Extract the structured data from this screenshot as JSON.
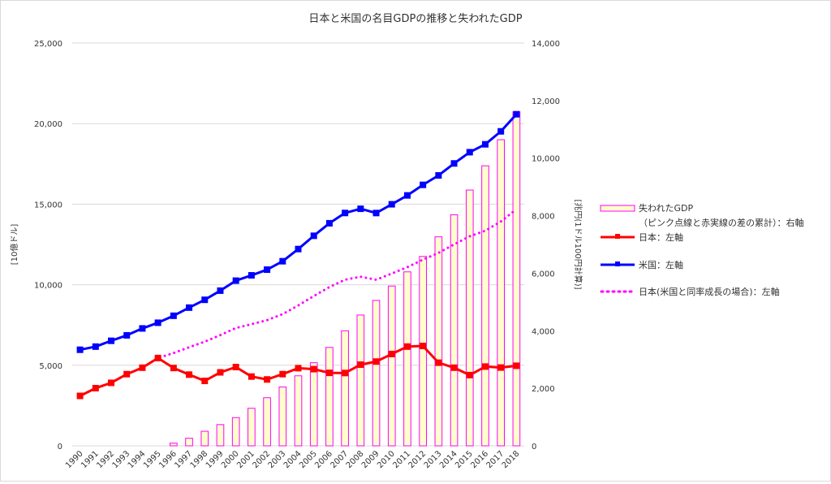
{
  "chart_data": {
    "type": "bar+line",
    "title": "日本と米国の名目GDPの推移と失われたGDP",
    "ylabel_left": "[10億ドル]",
    "ylabel_right": "[兆円(1ドル100円計算)]",
    "ylim_left": [
      0,
      25000
    ],
    "ylim_right": [
      0,
      14000
    ],
    "yticks_left": [
      "0",
      "5,000",
      "10,000",
      "15,000",
      "20,000",
      "25,000"
    ],
    "yticks_right": [
      "0",
      "2,000",
      "4,000",
      "6,000",
      "8,000",
      "10,000",
      "12,000",
      "14,000"
    ],
    "grid": true,
    "legend_position": "right",
    "categories": [
      "1990",
      "1991",
      "1992",
      "1993",
      "1994",
      "1995",
      "1996",
      "1997",
      "1998",
      "1999",
      "2000",
      "2001",
      "2002",
      "2003",
      "2004",
      "2005",
      "2006",
      "2007",
      "2008",
      "2009",
      "2010",
      "2011",
      "2012",
      "2013",
      "2014",
      "2015",
      "2016",
      "2017",
      "2018"
    ],
    "series": [
      {
        "name": "失われたGDP",
        "name2": "（ピンク点線と赤実線の差の累計）：右軸",
        "type": "bar",
        "axis": "right",
        "fill": "#ffffcc",
        "stroke": "#ff00ff",
        "values": [
          null,
          null,
          null,
          null,
          null,
          null,
          93,
          263,
          507,
          738,
          980,
          1305,
          1673,
          2045,
          2434,
          2888,
          3421,
          4000,
          4546,
          5054,
          5554,
          6047,
          6583,
          7264,
          8029,
          8890,
          9733,
          10640,
          11611
        ]
      },
      {
        "name": "日本：左軸",
        "type": "line",
        "axis": "left",
        "color": "#ff0000",
        "values": [
          3100,
          3580,
          3910,
          4450,
          4850,
          5450,
          4830,
          4420,
          4030,
          4560,
          4890,
          4300,
          4120,
          4450,
          4820,
          4760,
          4530,
          4520,
          5040,
          5230,
          5700,
          6160,
          6200,
          5160,
          4850,
          4390,
          4920,
          4860,
          4970
        ]
      },
      {
        "name": "米国：左軸",
        "type": "line",
        "axis": "left",
        "color": "#0000ff",
        "values": [
          5963,
          6158,
          6520,
          6859,
          7287,
          7640,
          8073,
          8578,
          9063,
          9631,
          10252,
          10582,
          10936,
          11458,
          12214,
          13037,
          13815,
          14452,
          14713,
          14449,
          14992,
          15543,
          16197,
          16785,
          17527,
          18225,
          18715,
          19519,
          20580
        ]
      },
      {
        "name": "日本(米国と同率成長の場合)：左軸",
        "type": "dotted",
        "axis": "left",
        "color": "#ff00ff",
        "values": [
          3100,
          3580,
          3910,
          4450,
          4850,
          5450,
          5759,
          6119,
          6465,
          6871,
          7314,
          7549,
          7801,
          8174,
          8713,
          9300,
          9855,
          10310,
          10496,
          10308,
          10695,
          11088,
          11555,
          11974,
          12504,
          13002,
          13351,
          13925,
          14682
        ]
      }
    ]
  }
}
